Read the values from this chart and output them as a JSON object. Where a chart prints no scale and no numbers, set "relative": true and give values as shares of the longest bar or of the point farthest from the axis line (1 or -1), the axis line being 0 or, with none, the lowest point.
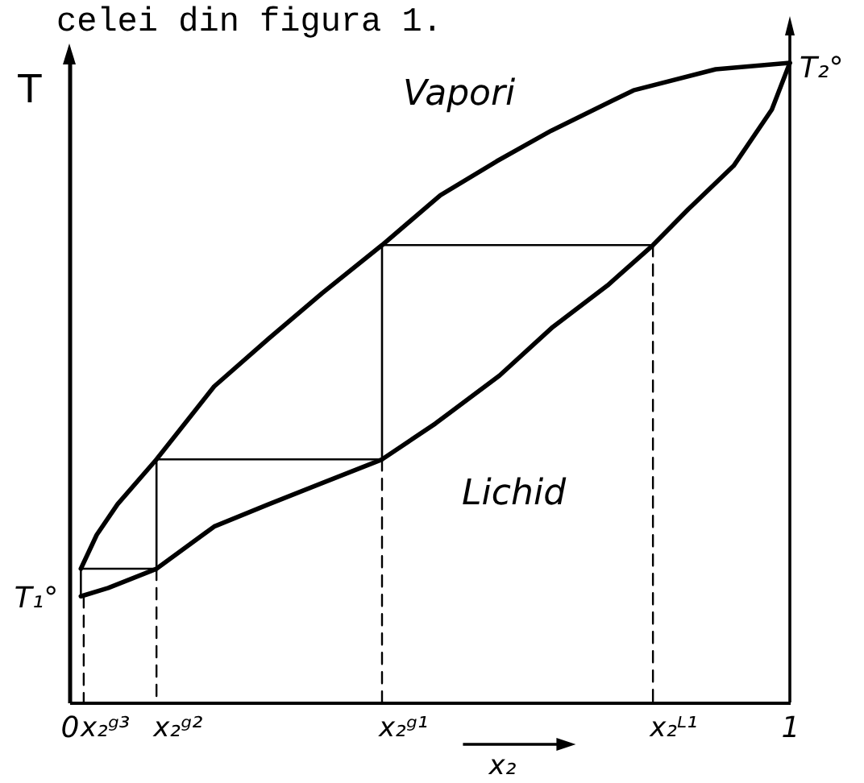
{
  "chart_data": {
    "type": "line",
    "title": "celei din figura 1.",
    "xlabel": "x₂",
    "ylabel": "T",
    "relative": true,
    "xlim": [
      0,
      1
    ],
    "xticks": [
      0,
      1
    ],
    "series": [
      {
        "color": "#000000",
        "x": [
          0.016,
          0.038,
          0.067,
          0.121,
          0.201,
          0.277,
          0.351,
          0.434,
          0.515,
          0.593,
          0.669,
          0.783,
          0.897,
          1
        ],
        "values": [
          0.209,
          0.262,
          0.31,
          0.38,
          0.494,
          0.569,
          0.64,
          0.715,
          0.793,
          0.846,
          0.894,
          0.957,
          0.99,
          1
        ]
      },
      {
        "color": "#000000",
        "x": [
          0.016,
          0.054,
          0.121,
          0.201,
          0.277,
          0.351,
          0.434,
          0.508,
          0.597,
          0.671,
          0.747,
          0.81,
          0.859,
          0.922,
          0.975,
          1
        ],
        "values": [
          0.166,
          0.179,
          0.209,
          0.275,
          0.31,
          0.343,
          0.38,
          0.436,
          0.511,
          0.587,
          0.652,
          0.715,
          0.771,
          0.839,
          0.927,
          1
        ]
      },
      {
        "color": "#000000",
        "x": [
          0.016,
          0.016,
          0.121,
          0.121,
          0.434,
          0.434,
          0.81
        ],
        "values": [
          0.166,
          0.209,
          0.209,
          0.38,
          0.38,
          0.715,
          0.715
        ]
      },
      {
        "color": "#000000",
        "line_style": "dashed",
        "x": [
          0.02,
          0.02
        ],
        "values": [
          0.166,
          0
        ]
      },
      {
        "color": "#000000",
        "line_style": "dashed",
        "x": [
          0.121,
          0.121
        ],
        "values": [
          0.209,
          0
        ]
      },
      {
        "color": "#000000",
        "line_style": "dashed",
        "x": [
          0.434,
          0.434
        ],
        "values": [
          0.38,
          0
        ]
      },
      {
        "color": "#000000",
        "line_style": "dashed",
        "x": [
          0.81,
          0.81
        ],
        "values": [
          0.715,
          0
        ]
      }
    ],
    "ref_lines": [
      {
        "axis": "x",
        "value": 1,
        "color": "#000000"
      }
    ],
    "annotations": [
      "Vapori",
      "Lichid",
      {
        "text": "T₁°",
        "x": 0.016,
        "y": 0.166
      },
      {
        "text": "T₂°",
        "x": 1,
        "y": 1
      },
      {
        "text": "x₂ᵍ³",
        "x": 0.02,
        "y": 0
      },
      {
        "text": "x₂ᵍ²",
        "x": 0.121,
        "y": 0
      },
      {
        "text": "x₂ᵍ¹",
        "x": 0.434,
        "y": 0
      },
      {
        "text": "x₂ᴸ¹",
        "x": 0.81,
        "y": 0
      }
    ]
  }
}
